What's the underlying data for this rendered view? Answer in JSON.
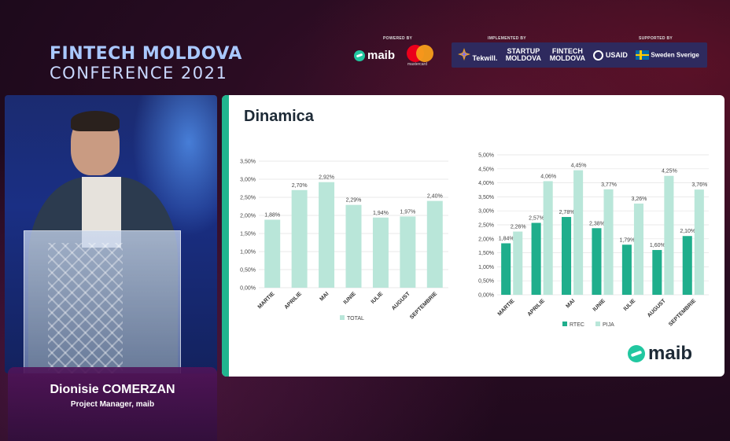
{
  "conference": {
    "line1": "FINTECH MOLDOVA",
    "line2": "CONFERENCE 2021"
  },
  "sponsors": {
    "powered_by_label": "POWERED BY",
    "powered_by": [
      "maib",
      "mastercard"
    ],
    "implemented_by_label": "IMPLEMENTED BY",
    "implemented_by": [
      "Tekwill.",
      "STARTUP MOLDOVA",
      "FINTECH MOLDOVA"
    ],
    "supported_by_label": "SUPPORTED BY",
    "supported_by": [
      "USAID",
      "Sweden Sverige"
    ]
  },
  "speaker": {
    "name": "Dionisie COMERZAN",
    "role": "Project Manager, maib"
  },
  "slide": {
    "title": "Dinamica",
    "logo": "maib"
  },
  "colors": {
    "light_bar": "#b9e6d9",
    "dark_bar": "#1fae8c",
    "accent": "#21b58f"
  },
  "chart_data": [
    {
      "type": "bar",
      "categories": [
        "MARTIE",
        "APRILIE",
        "MAI",
        "IUNIE",
        "IULIE",
        "AUGUST",
        "SEPTEMBRIE"
      ],
      "series": [
        {
          "name": "TOTAL",
          "values": [
            1.88,
            2.7,
            2.92,
            2.29,
            1.94,
            1.97,
            2.4
          ],
          "labels": [
            "1,88%",
            "2,70%",
            "2,92%",
            "2,29%",
            "1,94%",
            "1,97%",
            "2,40%"
          ]
        }
      ],
      "yticks": [
        "0,00%",
        "0,50%",
        "1,00%",
        "1,50%",
        "2,00%",
        "2,50%",
        "3,00%",
        "3,50%"
      ],
      "ylim": [
        0,
        3.5
      ],
      "grid": true,
      "legend": "bottom"
    },
    {
      "type": "bar",
      "categories": [
        "MARTIE",
        "APRILIE",
        "MAI",
        "IUNIE",
        "IULIE",
        "AUGUST",
        "SEPTEMBRIE"
      ],
      "series": [
        {
          "name": "RTEC",
          "values": [
            1.84,
            2.57,
            2.78,
            2.38,
            1.79,
            1.6,
            2.1
          ],
          "labels": [
            "1,84%",
            "2,57%",
            "2,78%",
            "2,38%",
            "1,79%",
            "1,60%",
            "2,10%"
          ]
        },
        {
          "name": "PIJA",
          "values": [
            2.26,
            4.06,
            4.45,
            3.77,
            3.26,
            4.25,
            3.76
          ],
          "labels": [
            "2,26%",
            "4,06%",
            "4,45%",
            "3,77%",
            "3,26%",
            "4,25%",
            "3,76%"
          ]
        }
      ],
      "yticks": [
        "0,00%",
        "0,50%",
        "1,00%",
        "1,50%",
        "2,00%",
        "2,50%",
        "3,00%",
        "3,50%",
        "4,00%",
        "4,50%",
        "5,00%"
      ],
      "ylim": [
        0,
        5.0
      ],
      "grid": true,
      "legend": "bottom"
    }
  ]
}
